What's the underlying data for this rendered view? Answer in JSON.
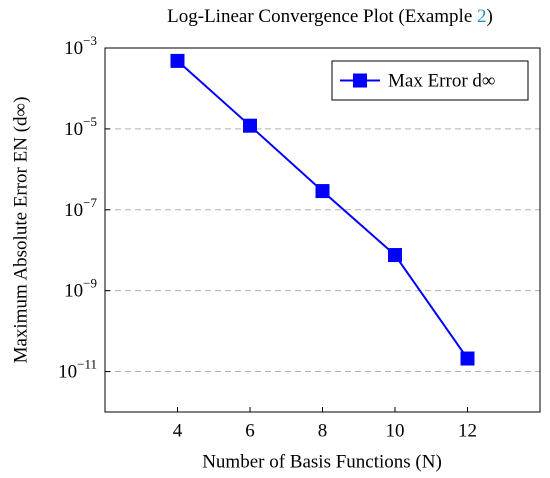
{
  "chart_data": {
    "type": "line",
    "title": "Log-Linear Convergence Plot (Example 2)",
    "x_label": "Number of Basis Functions (N)",
    "y_label": "Maximum Absolute Error EN (d∞)",
    "x": [
      4,
      6,
      8,
      10,
      12
    ],
    "series": [
      {
        "name": "Max Error d∞",
        "color": "#0000ff",
        "values": [
          0.00048,
          1.2e-05,
          2.9e-07,
          7.6e-09,
          2.1e-11
        ]
      }
    ],
    "xlim": [
      2,
      14
    ],
    "xticks": [
      4,
      6,
      8,
      10,
      12
    ],
    "ylim": [
      1e-12,
      0.001
    ],
    "yticks": [
      {
        "value": 0.001,
        "label": "10−3"
      },
      {
        "value": 1e-05,
        "label": "10−5"
      },
      {
        "value": 1e-07,
        "label": "10−7"
      },
      {
        "value": 1e-09,
        "label": "10−9"
      },
      {
        "value": 1e-11,
        "label": "10−11"
      }
    ],
    "y_scale": "log",
    "grid": true,
    "legend": "upper right"
  }
}
